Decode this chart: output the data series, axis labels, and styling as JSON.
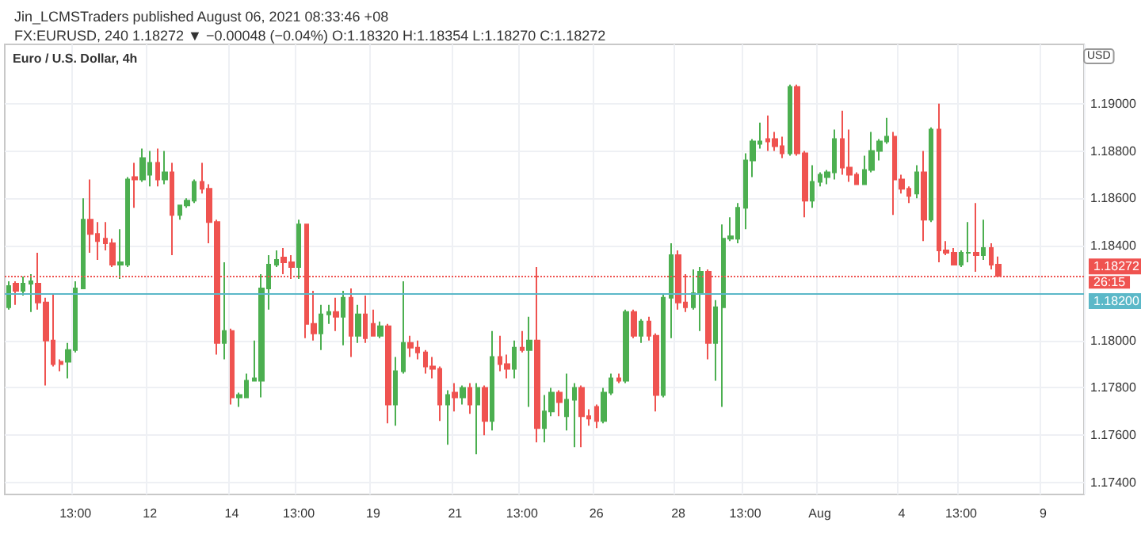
{
  "chart_data": {
    "type": "candlestick",
    "title": "Jin_LCMSTraders published August 06, 2021 08:33:46 +08",
    "subtitle": "FX:EURUSD, 240 1.18272 ▼ −0.00048 (−0.04%) O:1.18320 H:1.18354 L:1.18270 C:1.18272",
    "ylabel": "USD",
    "annotations": [
      "Euro / U.S. Dollar, 4h",
      "26:15"
    ],
    "categories": [
      null,
      null,
      null,
      null,
      null,
      null,
      null,
      null,
      null,
      "13:00",
      null,
      null,
      null,
      null,
      null,
      null,
      null,
      null,
      null,
      "12",
      null,
      null,
      null,
      null,
      null,
      null,
      null,
      null,
      null,
      null,
      "14",
      null,
      null,
      null,
      null,
      null,
      null,
      null,
      null,
      "13:00",
      null,
      null,
      null,
      null,
      null,
      null,
      null,
      null,
      null,
      "19",
      null,
      null,
      null,
      null,
      null,
      null,
      null,
      null,
      null,
      null,
      "21",
      null,
      null,
      null,
      null,
      null,
      null,
      null,
      null,
      "13:00",
      null,
      null,
      null,
      null,
      null,
      null,
      null,
      null,
      null,
      "26",
      null,
      null,
      null,
      null,
      null,
      null,
      null,
      null,
      null,
      null,
      "28",
      null,
      null,
      null,
      null,
      null,
      null,
      null,
      null,
      "13:00",
      null,
      null,
      null,
      null,
      null,
      null,
      null,
      null,
      null,
      "Aug",
      null,
      null,
      null,
      null,
      null,
      null,
      null,
      null,
      null,
      null,
      "4",
      null,
      null,
      null,
      null,
      null,
      null,
      null,
      "13:00",
      null,
      null,
      null,
      null,
      null,
      null,
      null,
      null,
      null,
      null,
      "9",
      null,
      null,
      null,
      null,
      null
    ],
    "ohlc": [
      [
        1.1814,
        1.1825,
        1.1813,
        1.1823
      ],
      [
        1.1824,
        1.1825,
        1.1815,
        1.1821
      ],
      [
        1.1821,
        1.1827,
        1.1819,
        1.1824
      ],
      [
        1.1824,
        1.1828,
        1.1812,
        1.1825
      ],
      [
        1.1824,
        1.1837,
        1.1813,
        1.1816
      ],
      [
        1.1816,
        1.1818,
        1.1781,
        1.18
      ],
      [
        1.18,
        1.182,
        1.1789,
        1.179
      ],
      [
        1.1791,
        1.1792,
        1.1787,
        1.179
      ],
      [
        1.1791,
        1.1799,
        1.1784,
        1.1796
      ],
      [
        1.1796,
        1.1825,
        1.1795,
        1.1822
      ],
      [
        1.1822,
        1.186,
        1.1822,
        1.1851
      ],
      [
        1.1851,
        1.1868,
        1.1837,
        1.1845
      ],
      [
        1.1845,
        1.185,
        1.1834,
        1.1842
      ],
      [
        1.1843,
        1.185,
        1.1838,
        1.1841
      ],
      [
        1.1841,
        1.1843,
        1.1831,
        1.1832
      ],
      [
        1.1832,
        1.1847,
        1.1826,
        1.1833
      ],
      [
        1.1832,
        1.1869,
        1.1831,
        1.1868
      ],
      [
        1.1869,
        1.1875,
        1.1856,
        1.1868
      ],
      [
        1.1868,
        1.1881,
        1.1867,
        1.1877
      ],
      [
        1.187,
        1.188,
        1.1865,
        1.1875
      ],
      [
        1.1875,
        1.1881,
        1.1865,
        1.1868
      ],
      [
        1.1868,
        1.188,
        1.1866,
        1.1871
      ],
      [
        1.1871,
        1.1875,
        1.1836,
        1.1853
      ],
      [
        1.1853,
        1.1857,
        1.1851,
        1.1857
      ],
      [
        1.1857,
        1.186,
        1.1856,
        1.1859
      ],
      [
        1.1859,
        1.1868,
        1.1858,
        1.1867
      ],
      [
        1.1867,
        1.1875,
        1.1862,
        1.1864
      ],
      [
        1.1864,
        1.1866,
        1.1841,
        1.185
      ],
      [
        1.185,
        1.1851,
        1.1794,
        1.1799
      ],
      [
        1.1799,
        1.1833,
        1.1792,
        1.1804
      ],
      [
        1.1804,
        1.1805,
        1.1773,
        1.1776
      ],
      [
        1.1776,
        1.1778,
        1.1772,
        1.1777
      ],
      [
        1.1776,
        1.1786,
        1.1776,
        1.1783
      ],
      [
        1.1783,
        1.18,
        1.1783,
        1.1784
      ],
      [
        1.1783,
        1.1828,
        1.1776,
        1.1822
      ],
      [
        1.1822,
        1.1836,
        1.1813,
        1.1832
      ],
      [
        1.1832,
        1.1838,
        1.1831,
        1.1834
      ],
      [
        1.1835,
        1.1839,
        1.1828,
        1.1833
      ],
      [
        1.1833,
        1.1836,
        1.1826,
        1.1831
      ],
      [
        1.1831,
        1.1851,
        1.1826,
        1.1849
      ],
      [
        1.1849,
        1.1849,
        1.1801,
        1.1807
      ],
      [
        1.1807,
        1.1821,
        1.18,
        1.1803
      ],
      [
        1.1803,
        1.1815,
        1.1796,
        1.1811
      ],
      [
        1.1811,
        1.1815,
        1.1807,
        1.1812
      ],
      [
        1.1812,
        1.1818,
        1.1804,
        1.181
      ],
      [
        1.181,
        1.1821,
        1.1798,
        1.1818
      ],
      [
        1.1818,
        1.1822,
        1.1793,
        1.1802
      ],
      [
        1.1802,
        1.1815,
        1.1799,
        1.1811
      ],
      [
        1.1811,
        1.1819,
        1.1799,
        1.1801
      ],
      [
        1.1807,
        1.1813,
        1.1802,
        1.1802
      ],
      [
        1.1802,
        1.1808,
        1.1801,
        1.1806
      ],
      [
        1.1806,
        1.1807,
        1.1765,
        1.1773
      ],
      [
        1.1773,
        1.1793,
        1.1764,
        1.1787
      ],
      [
        1.1787,
        1.1825,
        1.1786,
        1.1799
      ],
      [
        1.1799,
        1.1802,
        1.1793,
        1.1797
      ],
      [
        1.1797,
        1.18,
        1.1792,
        1.1795
      ],
      [
        1.1795,
        1.1796,
        1.1786,
        1.1789
      ],
      [
        1.1789,
        1.1793,
        1.1784,
        1.1788
      ],
      [
        1.1788,
        1.1789,
        1.1766,
        1.1773
      ],
      [
        1.1773,
        1.1779,
        1.1756,
        1.1777
      ],
      [
        1.1778,
        1.1782,
        1.177,
        1.1776
      ],
      [
        1.1776,
        1.1781,
        1.1773,
        1.178
      ],
      [
        1.178,
        1.1782,
        1.1769,
        1.1773
      ],
      [
        1.1773,
        1.1782,
        1.1752,
        1.178
      ],
      [
        1.178,
        1.1781,
        1.176,
        1.1766
      ],
      [
        1.1766,
        1.1804,
        1.1762,
        1.1793
      ],
      [
        1.1793,
        1.1802,
        1.1787,
        1.179
      ],
      [
        1.179,
        1.1794,
        1.1784,
        1.1788
      ],
      [
        1.1788,
        1.18,
        1.1784,
        1.1797
      ],
      [
        1.1797,
        1.1804,
        1.1795,
        1.1796
      ],
      [
        1.1796,
        1.181,
        1.1772,
        1.18
      ],
      [
        1.18,
        1.1831,
        1.1757,
        1.1763
      ],
      [
        1.1763,
        1.1777,
        1.1757,
        1.177
      ],
      [
        1.177,
        1.178,
        1.1768,
        1.1778
      ],
      [
        1.1778,
        1.1779,
        1.1768,
        1.1774
      ],
      [
        1.1768,
        1.1786,
        1.1762,
        1.1775
      ],
      [
        1.1775,
        1.1782,
        1.1755,
        1.178
      ],
      [
        1.178,
        1.1781,
        1.1755,
        1.1768
      ],
      [
        1.1768,
        1.1771,
        1.1764,
        1.1767
      ],
      [
        1.1772,
        1.1773,
        1.1763,
        1.1766
      ],
      [
        1.1766,
        1.178,
        1.1765,
        1.1778
      ],
      [
        1.1778,
        1.1786,
        1.1777,
        1.1784
      ],
      [
        1.1784,
        1.1786,
        1.1782,
        1.1783
      ],
      [
        1.1783,
        1.1813,
        1.1782,
        1.1812
      ],
      [
        1.1812,
        1.1813,
        1.1801,
        1.1802
      ],
      [
        1.1802,
        1.1809,
        1.1799,
        1.1808
      ],
      [
        1.1808,
        1.181,
        1.18,
        1.1802
      ],
      [
        1.1802,
        1.1803,
        1.177,
        1.1777
      ],
      [
        1.1777,
        1.182,
        1.1776,
        1.1818
      ],
      [
        1.1818,
        1.1841,
        1.1801,
        1.1836
      ],
      [
        1.1836,
        1.1838,
        1.1813,
        1.1816
      ],
      [
        1.1816,
        1.1828,
        1.1812,
        1.1814
      ],
      [
        1.1814,
        1.183,
        1.1813,
        1.182
      ],
      [
        1.182,
        1.1831,
        1.1804,
        1.1829
      ],
      [
        1.1829,
        1.183,
        1.1792,
        1.1799
      ],
      [
        1.1799,
        1.1817,
        1.1783,
        1.1814
      ],
      [
        1.1814,
        1.1849,
        1.1772,
        1.1843
      ],
      [
        1.1843,
        1.1852,
        1.1842,
        1.1844
      ],
      [
        1.1843,
        1.1858,
        1.1841,
        1.1856
      ],
      [
        1.1856,
        1.1879,
        1.1847,
        1.1876
      ],
      [
        1.1876,
        1.1885,
        1.1869,
        1.1884
      ],
      [
        1.1883,
        1.1892,
        1.1881,
        1.1884
      ],
      [
        1.1885,
        1.1895,
        1.188,
        1.1884
      ],
      [
        1.1885,
        1.1888,
        1.188,
        1.1882
      ],
      [
        1.1882,
        1.1886,
        1.1877,
        1.1879
      ],
      [
        1.1879,
        1.1908,
        1.1878,
        1.1907
      ],
      [
        1.1907,
        1.1908,
        1.1878,
        1.1879
      ],
      [
        1.1879,
        1.188,
        1.1852,
        1.1859
      ],
      [
        1.1859,
        1.1874,
        1.1856,
        1.1867
      ],
      [
        1.1867,
        1.1871,
        1.1865,
        1.187
      ],
      [
        1.1869,
        1.1872,
        1.1866,
        1.1871
      ],
      [
        1.1871,
        1.1889,
        1.1868,
        1.1885
      ],
      [
        1.1885,
        1.1897,
        1.187,
        1.1873
      ],
      [
        1.1873,
        1.1889,
        1.1867,
        1.187
      ],
      [
        1.187,
        1.1871,
        1.1866,
        1.1866
      ],
      [
        1.1866,
        1.1878,
        1.1866,
        1.1872
      ],
      [
        1.1872,
        1.1888,
        1.1871,
        1.188
      ],
      [
        1.188,
        1.1885,
        1.1876,
        1.1884
      ],
      [
        1.1884,
        1.1894,
        1.1883,
        1.1886
      ],
      [
        1.1886,
        1.1888,
        1.1853,
        1.1868
      ],
      [
        1.1868,
        1.187,
        1.1862,
        1.1864
      ],
      [
        1.1864,
        1.1865,
        1.1858,
        1.1861
      ],
      [
        1.1862,
        1.1874,
        1.186,
        1.1871
      ],
      [
        1.1871,
        1.188,
        1.1842,
        1.1851
      ],
      [
        1.1851,
        1.189,
        1.185,
        1.1889
      ],
      [
        1.1889,
        1.19,
        1.1833,
        1.1838
      ],
      [
        1.1838,
        1.1842,
        1.1836,
        1.1837
      ],
      [
        1.1837,
        1.1839,
        1.1832,
        1.1832
      ],
      [
        1.1832,
        1.1838,
        1.1831,
        1.1837
      ],
      [
        1.1837,
        1.185,
        1.1833,
        1.1837
      ],
      [
        1.1837,
        1.1858,
        1.1829,
        1.1836
      ],
      [
        1.1836,
        1.1851,
        1.1834,
        1.1839
      ],
      [
        1.1839,
        1.1841,
        1.183,
        1.1832
      ],
      [
        1.1832,
        1.18354,
        1.1827,
        1.18272
      ],
      null,
      null,
      null,
      null,
      null,
      null,
      null,
      null,
      null,
      null,
      null
    ],
    "colors": [
      "#4caf50",
      "#ef5350",
      "#4caf50",
      "#4caf50",
      "#ef5350",
      "#ef5350",
      "#ef5350",
      "#ef5350",
      "#4caf50",
      "#4caf50",
      "#4caf50",
      "#ef5350",
      "#ef5350",
      "#ef5350",
      "#ef5350",
      "#4caf50",
      "#4caf50",
      "#ef5350",
      "#4caf50",
      "#4caf50",
      "#ef5350",
      "#4caf50",
      "#ef5350",
      "#4caf50",
      "#4caf50",
      "#4caf50",
      "#ef5350",
      "#ef5350",
      "#ef5350",
      "#4caf50",
      "#ef5350",
      "#4caf50",
      "#4caf50",
      "#4caf50",
      "#4caf50",
      "#4caf50",
      "#4caf50",
      "#ef5350",
      "#ef5350",
      "#4caf50",
      "#ef5350",
      "#ef5350",
      "#4caf50",
      "#4caf50",
      "#ef5350",
      "#4caf50",
      "#ef5350",
      "#4caf50",
      "#ef5350",
      "#ef5350",
      "#4caf50",
      "#ef5350",
      "#4caf50",
      "#4caf50",
      "#ef5350",
      "#ef5350",
      "#ef5350",
      "#ef5350",
      "#ef5350",
      "#4caf50",
      "#ef5350",
      "#4caf50",
      "#ef5350",
      "#4caf50",
      "#ef5350",
      "#4caf50",
      "#ef5350",
      "#ef5350",
      "#4caf50",
      "#ef5350",
      "#4caf50",
      "#ef5350",
      "#4caf50",
      "#4caf50",
      "#ef5350",
      "#4caf50",
      "#4caf50",
      "#ef5350",
      "#ef5350",
      "#ef5350",
      "#4caf50",
      "#4caf50",
      "#ef5350",
      "#4caf50",
      "#ef5350",
      "#4caf50",
      "#ef5350",
      "#ef5350",
      "#4caf50",
      "#4caf50",
      "#ef5350",
      "#ef5350",
      "#4caf50",
      "#4caf50",
      "#ef5350",
      "#4caf50",
      "#4caf50",
      "#4caf50",
      "#4caf50",
      "#4caf50",
      "#4caf50",
      "#4caf50",
      "#ef5350",
      "#ef5350",
      "#ef5350",
      "#4caf50",
      "#ef5350",
      "#ef5350",
      "#4caf50",
      "#4caf50",
      "#4caf50",
      "#4caf50",
      "#ef5350",
      "#ef5350",
      "#ef5350",
      "#4caf50",
      "#4caf50",
      "#4caf50",
      "#4caf50",
      "#ef5350",
      "#ef5350",
      "#ef5350",
      "#4caf50",
      "#ef5350",
      "#4caf50",
      "#ef5350",
      "#ef5350",
      "#ef5350",
      "#4caf50",
      "#4caf50",
      "#ef5350",
      "#4caf50",
      "#ef5350",
      "#ef5350",
      null,
      null,
      null,
      null,
      null,
      null,
      null,
      null,
      null,
      null,
      null
    ],
    "ylim": [
      1.1735,
      1.1925
    ],
    "yticks": [
      {
        "value": 1.174,
        "label": "1.17400"
      },
      {
        "value": 1.176,
        "label": "1.17600"
      },
      {
        "value": 1.178,
        "label": "1.17800"
      },
      {
        "value": 1.18,
        "label": "1.18000"
      },
      {
        "value": 1.182,
        "label": null
      },
      {
        "value": 1.184,
        "label": "1.18400"
      },
      {
        "value": 1.186,
        "label": "1.18600"
      },
      {
        "value": 1.188,
        "label": "1.18800"
      },
      {
        "value": 1.19,
        "label": "1.19000"
      }
    ],
    "ref_lines": [
      {
        "axis": "y",
        "value": 1.182,
        "label": "1.18200",
        "color": "#5bb8c8",
        "line_style": "solid"
      },
      {
        "axis": "y",
        "value": 1.18272,
        "label": "1.18272",
        "color": "#ef5350",
        "line_style": "dotted"
      }
    ],
    "grid": true
  }
}
